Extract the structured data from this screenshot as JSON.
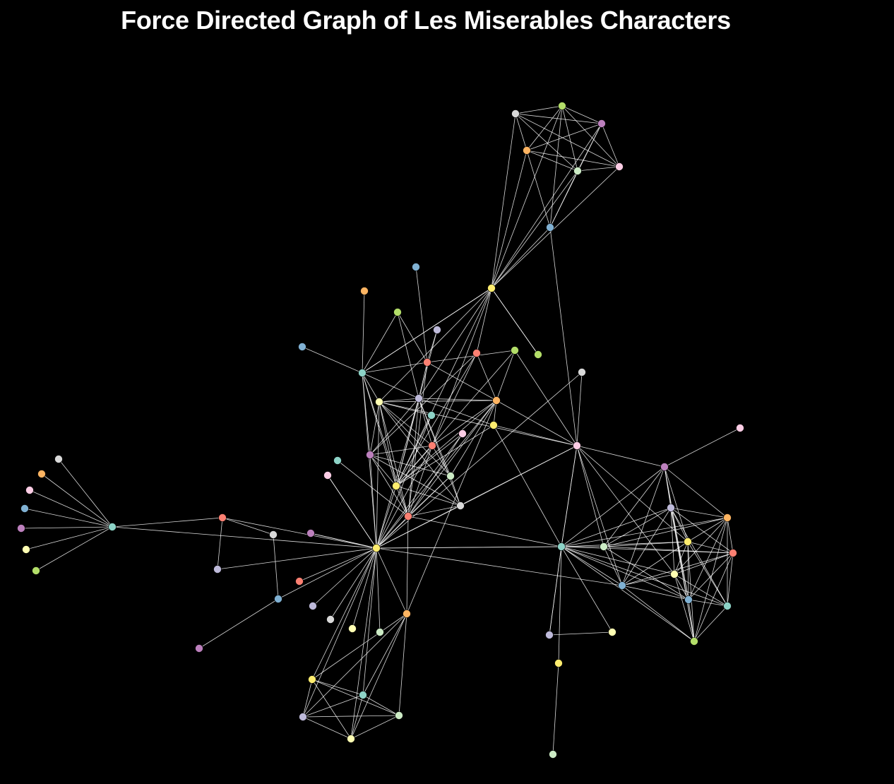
{
  "title": "Force Directed Graph of Les Miserables Characters",
  "colors": {
    "background": "#000000",
    "link": "#ffffff",
    "title": "#ffffff"
  },
  "palette": {
    "teal": "#8dd3c7",
    "yellow": "#ffffb3",
    "lavender": "#bebada",
    "red": "#fb8072",
    "blue": "#80b1d3",
    "orange": "#fdb462",
    "lime": "#b3de69",
    "pink": "#fccde5",
    "grey": "#d9d9d9",
    "purple": "#bc80bd",
    "mint": "#ccebc5",
    "gold": "#ffed6f"
  }
}
